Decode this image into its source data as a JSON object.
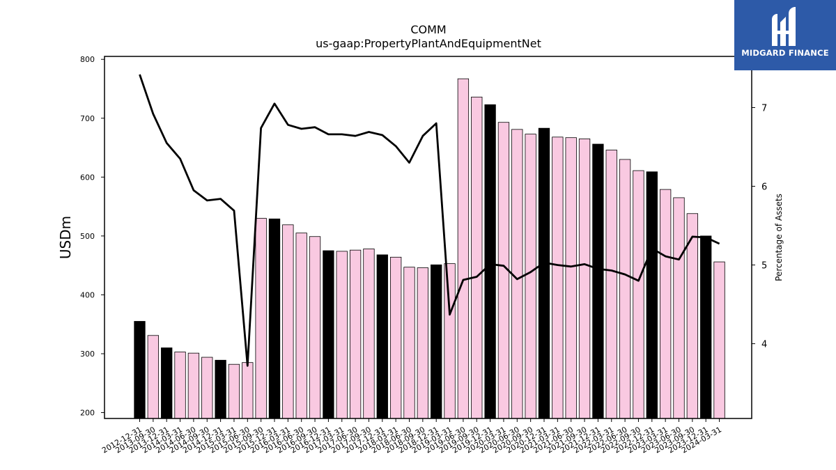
{
  "chart_data": {
    "type": "bar",
    "title": "COMM",
    "subtitle": "us-gaap:PropertyPlantAndEquipmentNet",
    "ylabel": "USDm",
    "y2label": "Percentage of Assets",
    "ylim": [
      190,
      805
    ],
    "y2lim": [
      3.05,
      7.65
    ],
    "yticks": [
      200,
      300,
      400,
      500,
      600,
      700,
      800
    ],
    "y2ticks": [
      4,
      5,
      6,
      7
    ],
    "categories": [
      "2012-12-31",
      "2013-09-30",
      "2013-12-31",
      "2014-03-31",
      "2014-06-30",
      "2014-09-30",
      "2014-12-31",
      "2015-03-31",
      "2015-06-30",
      "2015-09-30",
      "2015-12-31",
      "2016-03-31",
      "2016-06-30",
      "2016-09-30",
      "2016-12-31",
      "2017-03-31",
      "2017-06-30",
      "2017-09-30",
      "2017-12-31",
      "2018-03-31",
      "2018-06-30",
      "2018-09-30",
      "2018-12-31",
      "2019-03-31",
      "2019-06-30",
      "2019-09-30",
      "2019-12-31",
      "2020-03-31",
      "2020-06-30",
      "2020-09-30",
      "2020-12-31",
      "2021-03-31",
      "2021-06-30",
      "2021-09-30",
      "2021-12-31",
      "2022-03-31",
      "2022-06-30",
      "2022-09-30",
      "2022-12-31",
      "2023-03-31",
      "2023-06-30",
      "2023-09-30",
      "2023-12-31",
      "2024-03-31"
    ],
    "series": [
      {
        "kind": "bar",
        "axis": "left",
        "values": [
          355,
          331,
          310,
          303,
          301,
          294,
          289,
          282,
          285,
          530,
          529,
          519,
          505,
          499,
          475,
          474,
          476,
          478,
          468,
          464,
          447,
          446,
          451,
          453,
          767,
          736,
          723,
          693,
          681,
          673,
          683,
          668,
          667,
          665,
          656,
          646,
          630,
          611,
          609,
          579,
          565,
          538,
          500,
          456
        ],
        "highlight": [
          true,
          false,
          true,
          false,
          false,
          false,
          true,
          false,
          false,
          false,
          true,
          false,
          false,
          false,
          true,
          false,
          false,
          false,
          true,
          false,
          false,
          false,
          true,
          false,
          false,
          false,
          true,
          false,
          false,
          false,
          true,
          false,
          false,
          false,
          true,
          false,
          false,
          false,
          true,
          false,
          false,
          false,
          true,
          false
        ]
      },
      {
        "kind": "line",
        "axis": "right",
        "values": [
          7.42,
          6.92,
          6.55,
          6.35,
          5.95,
          5.82,
          5.84,
          5.69,
          3.72,
          6.74,
          7.05,
          6.78,
          6.73,
          6.75,
          6.66,
          6.66,
          6.64,
          6.69,
          6.65,
          6.51,
          6.3,
          6.64,
          6.8,
          4.37,
          4.81,
          4.85,
          5.01,
          4.99,
          4.82,
          4.91,
          5.03,
          5.0,
          4.98,
          5.01,
          4.95,
          4.93,
          4.88,
          4.8,
          5.21,
          5.11,
          5.07,
          5.36,
          5.35,
          5.27
        ]
      }
    ],
    "colors": {
      "bar_fill": "#f9c9e1",
      "bar_highlight": "#000000",
      "bar_edge": "#000000",
      "line": "#000000"
    },
    "grid": false
  },
  "logo": {
    "text": "MIDGARD FINANCE",
    "background": "#2d5aa8"
  }
}
